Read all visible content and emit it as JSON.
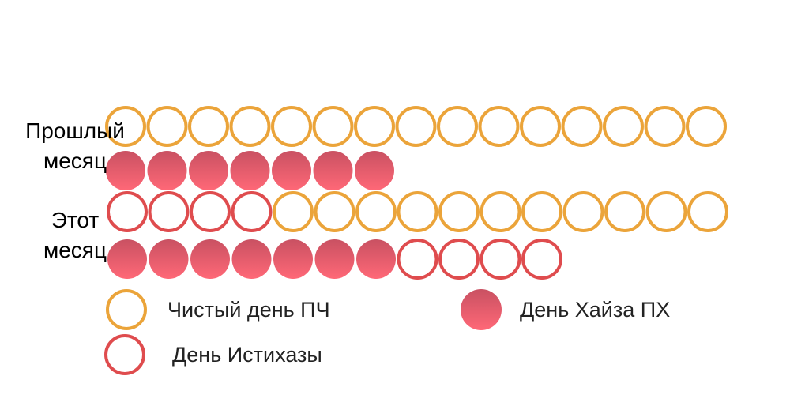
{
  "colors": {
    "clean": "#EBA43A",
    "haiz": "#F05C6E",
    "istihaza": "#DF4C4E"
  },
  "legend": {
    "clean_label": "Чистый день ПЧ",
    "haiz_label": "День Хайза ПХ",
    "istihaza_label": "День Истихазы"
  },
  "chart_data": {
    "type": "pictogram",
    "rows": [
      {
        "label_line1": "Прошлый",
        "label_line2": "месяц",
        "lines": [
          [
            "clean",
            "clean",
            "clean",
            "clean",
            "clean",
            "clean",
            "clean",
            "clean",
            "clean",
            "clean",
            "clean",
            "clean",
            "clean",
            "clean",
            "clean"
          ],
          [
            "haiz",
            "haiz",
            "haiz",
            "haiz",
            "haiz",
            "haiz",
            "haiz"
          ]
        ]
      },
      {
        "label_line1": "Этот",
        "label_line2": "месяц",
        "lines": [
          [
            "istihaza",
            "istihaza",
            "istihaza",
            "istihaza",
            "clean",
            "clean",
            "clean",
            "clean",
            "clean",
            "clean",
            "clean",
            "clean",
            "clean",
            "clean",
            "clean"
          ],
          [
            "haiz",
            "haiz",
            "haiz",
            "haiz",
            "haiz",
            "haiz",
            "haiz",
            "istihaza",
            "istihaza",
            "istihaza",
            "istihaza"
          ]
        ]
      }
    ],
    "counts": {
      "previous_month": {
        "clean": 15,
        "haiz": 7
      },
      "this_month": {
        "istihaza": 8,
        "clean": 11,
        "haiz": 7
      }
    }
  }
}
